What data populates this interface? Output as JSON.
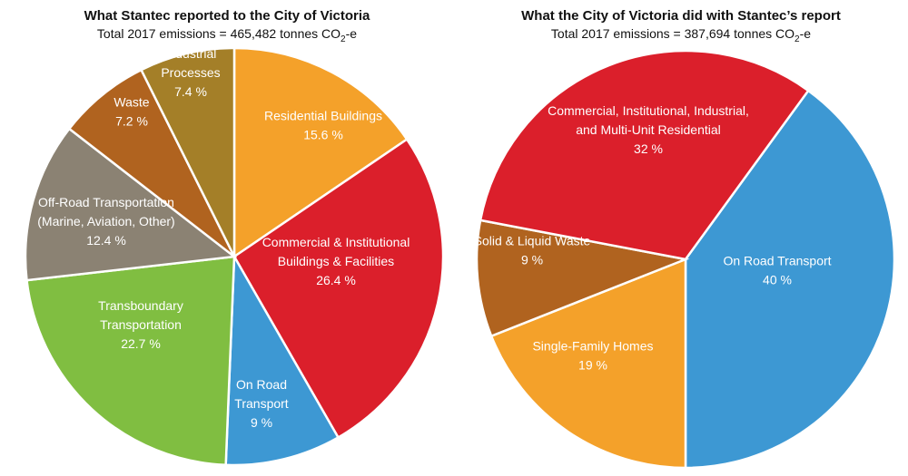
{
  "chart_data": [
    {
      "type": "pie",
      "title": "What Stantec reported to the City of Victoria",
      "subtitle_prefix": "Total 2017 emissions = 465,482 tonnes CO",
      "subtitle_sub": "2",
      "subtitle_suffix": "-e",
      "slices": [
        {
          "label": [
            "Residential Buildings"
          ],
          "value_label": "15.6 %",
          "value": 15.6,
          "color": "#F4A12A"
        },
        {
          "label": [
            "Commercial & Institutional",
            "Buildings & Facilities"
          ],
          "value_label": "26.4 %",
          "value": 26.4,
          "color": "#DB1F2B"
        },
        {
          "label": [
            "On Road",
            "Transport"
          ],
          "value_label": "9 %",
          "value": 9,
          "color": "#3D98D3"
        },
        {
          "label": [
            "Transboundary",
            "Transportation"
          ],
          "value_label": "22.7 %",
          "value": 22.7,
          "color": "#80BE41"
        },
        {
          "label": [
            "Off-Road Transportation",
            "(Marine, Aviation, Other)"
          ],
          "value_label": "12.4 %",
          "value": 12.4,
          "color": "#8B8273"
        },
        {
          "label": [
            "Waste"
          ],
          "value_label": "7.2 %",
          "value": 7.2,
          "color": "#B0631F"
        },
        {
          "label": [
            "Industrial",
            "Processes"
          ],
          "value_label": "7.4 %",
          "value": 7.4,
          "color": "#A47F28"
        }
      ]
    },
    {
      "type": "pie",
      "title": "What the City of Victoria did with Stantec’s report",
      "subtitle_prefix": "Total 2017 emissions = 387,694 tonnes CO",
      "subtitle_sub": "2",
      "subtitle_suffix": "-e",
      "slices": [
        {
          "label": [
            "On Road Transport"
          ],
          "value_label": "40 %",
          "value": 40,
          "color": "#3D98D3"
        },
        {
          "label": [
            "Single-Family Homes"
          ],
          "value_label": "19 %",
          "value": 19,
          "color": "#F4A12A"
        },
        {
          "label": [
            "Solid & Liquid Waste"
          ],
          "value_label": "9 %",
          "value": 9,
          "color": "#B0631F"
        },
        {
          "label": [
            "Commercial, Institutional, Industrial,",
            "and Multi-Unit Residential"
          ],
          "value_label": "32 %",
          "value": 32,
          "color": "#DB1F2B"
        }
      ]
    }
  ]
}
